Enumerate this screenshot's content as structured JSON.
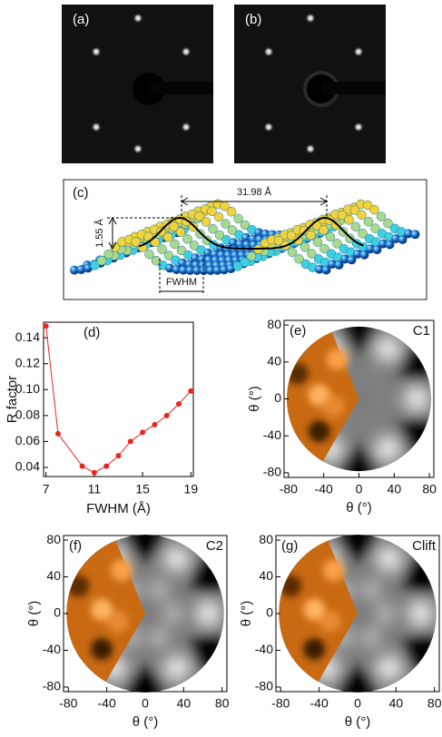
{
  "panels": {
    "a": {
      "label": "(a)"
    },
    "b": {
      "label": "(b)"
    },
    "c": {
      "label": "(c)",
      "period": "31.98 Å",
      "height": "1.55 Å",
      "width": "FWHM"
    },
    "e": {
      "label": "(e)",
      "name": "C1",
      "xlim": [
        -85,
        85
      ],
      "ylim": [
        -85,
        85
      ],
      "xticks": [
        -80,
        -40,
        0,
        40,
        80
      ],
      "yticks": [
        -80,
        -40,
        0,
        40,
        80
      ],
      "xlabel": "θ (°)",
      "ylabel": "θ (°)"
    },
    "f": {
      "label": "(f)",
      "name": "C2",
      "xlim": [
        -85,
        85
      ],
      "ylim": [
        -85,
        85
      ],
      "xticks": [
        -80,
        -40,
        0,
        40,
        80
      ],
      "yticks": [
        -80,
        -40,
        0,
        40,
        80
      ],
      "xlabel": "θ (°)",
      "ylabel": "θ (°)"
    },
    "g": {
      "label": "(g)",
      "name": "Clift",
      "xlim": [
        -85,
        85
      ],
      "ylim": [
        -85,
        85
      ],
      "xticks": [
        -80,
        -40,
        0,
        40,
        80
      ],
      "yticks": [
        -80,
        -40,
        0,
        40,
        80
      ],
      "xlabel": "θ (°)",
      "ylabel": "θ (°)"
    }
  },
  "chart_data": {
    "type": "line",
    "label": "(d)",
    "x": [
      7,
      8,
      10,
      11,
      12,
      13,
      14,
      15,
      16,
      17,
      18,
      19
    ],
    "values": [
      0.149,
      0.066,
      0.041,
      0.036,
      0.041,
      0.049,
      0.06,
      0.067,
      0.073,
      0.08,
      0.089,
      0.099
    ],
    "color": "#e8251f",
    "xlim": [
      6.8,
      19.2
    ],
    "ylim": [
      0.033,
      0.152
    ],
    "xticks": [
      7,
      11,
      15,
      19
    ],
    "yticks": [
      0.04,
      0.06,
      0.08,
      {
        "value": 0.1,
        "label": "0.10"
      },
      0.12,
      0.14
    ],
    "xlabel": "FWHM (Å)",
    "ylabel": "R factor"
  }
}
